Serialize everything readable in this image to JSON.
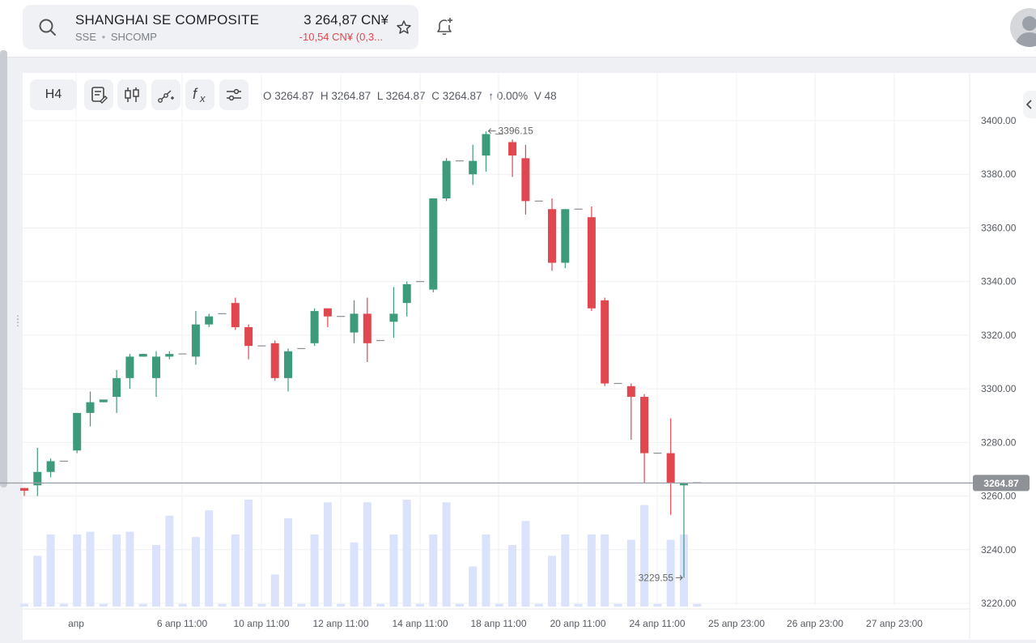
{
  "header": {
    "symbol_name": "SHANGHAI SE COMPOSITE",
    "exchange": "SSE",
    "ticker": "SHCOMP",
    "price": "3 264,87 CN¥",
    "change": "-10,54 CN¥ (0,3..."
  },
  "toolbar": {
    "timeframe": "H4",
    "ohlc": {
      "open": "O 3264.87",
      "high": "H 3264.87",
      "low": "L 3264.87",
      "close": "C 3264.87",
      "change": "↑ 0.00%",
      "volume": "V 48"
    }
  },
  "icons": [
    "search-icon",
    "star-icon",
    "alert-plus-icon",
    "user-avatar-icon",
    "notes-icon",
    "candles-icon",
    "draw-line-icon",
    "fx-icon",
    "settings-sliders-icon",
    "chevron-left-icon"
  ],
  "colors": {
    "up": "#3d9b7c",
    "down": "#e0474f",
    "volume": "#dbe2fb",
    "grid": "#eef0f3",
    "price_line": "#9ca0a6"
  },
  "chart_data": {
    "type": "candlestick",
    "timeframe": "H4",
    "y_axis": {
      "min": 3220,
      "max": 3400,
      "ticks": [
        3220.0,
        3240.0,
        3260.0,
        3280.0,
        3300.0,
        3320.0,
        3340.0,
        3360.0,
        3380.0,
        3400.0
      ]
    },
    "x_labels": [
      "апр",
      "6 апр 11:00",
      "10 апр 11:00",
      "12 апр 11:00",
      "14 апр 11:00",
      "18 апр 11:00",
      "20 апр 11:00",
      "24 апр 11:00",
      "25 апр 23:00",
      "26 апр 23:00",
      "27 апр 23:00"
    ],
    "last_price_label": "3264.87",
    "high_annotation": "3396.15",
    "low_annotation": "3229.55",
    "candles": [
      {
        "o": 3263,
        "h": 3263,
        "l": 3260,
        "c": 3262,
        "v": 1
      },
      {
        "o": 3264,
        "h": 3278,
        "l": 3260,
        "c": 3269,
        "v": 19
      },
      {
        "o": 3269,
        "h": 3274,
        "l": 3267,
        "c": 3273,
        "v": 27
      },
      {
        "o": 3273,
        "h": 3273,
        "l": 3272,
        "c": 3273,
        "v": 1
      },
      {
        "o": 3277,
        "h": 3291,
        "l": 3276,
        "c": 3291,
        "v": 27
      },
      {
        "o": 3291,
        "h": 3299,
        "l": 3286,
        "c": 3295,
        "v": 28
      },
      {
        "o": 3295,
        "h": 3296,
        "l": 3295,
        "c": 3296,
        "v": 1
      },
      {
        "o": 3297,
        "h": 3307,
        "l": 3291,
        "c": 3304,
        "v": 27
      },
      {
        "o": 3304,
        "h": 3313,
        "l": 3300,
        "c": 3312,
        "v": 28
      },
      {
        "o": 3312,
        "h": 3313,
        "l": 3312,
        "c": 3313,
        "v": 1
      },
      {
        "o": 3304,
        "h": 3314,
        "l": 3297,
        "c": 3312,
        "v": 23
      },
      {
        "o": 3312,
        "h": 3314,
        "l": 3311,
        "c": 3313,
        "v": 34
      },
      {
        "o": 3313,
        "h": 3313,
        "l": 3313,
        "c": 3313,
        "v": 1
      },
      {
        "o": 3312,
        "h": 3329,
        "l": 3309,
        "c": 3324,
        "v": 26
      },
      {
        "o": 3324,
        "h": 3328,
        "l": 3323,
        "c": 3327,
        "v": 36
      },
      {
        "o": 3328,
        "h": 3328,
        "l": 3328,
        "c": 3328,
        "v": 1
      },
      {
        "o": 3332,
        "h": 3334,
        "l": 3322,
        "c": 3323,
        "v": 27
      },
      {
        "o": 3323,
        "h": 3324,
        "l": 3311,
        "c": 3316,
        "v": 40
      },
      {
        "o": 3316,
        "h": 3316,
        "l": 3316,
        "c": 3316,
        "v": 1
      },
      {
        "o": 3317,
        "h": 3318,
        "l": 3303,
        "c": 3304,
        "v": 12
      },
      {
        "o": 3304,
        "h": 3315,
        "l": 3299,
        "c": 3314,
        "v": 33
      },
      {
        "o": 3315,
        "h": 3315,
        "l": 3315,
        "c": 3315,
        "v": 1
      },
      {
        "o": 3317,
        "h": 3330,
        "l": 3316,
        "c": 3329,
        "v": 27
      },
      {
        "o": 3330,
        "h": 3330,
        "l": 3323,
        "c": 3327,
        "v": 39
      },
      {
        "o": 3327,
        "h": 3327,
        "l": 3327,
        "c": 3327,
        "v": 1
      },
      {
        "o": 3321,
        "h": 3333,
        "l": 3317,
        "c": 3328,
        "v": 24
      },
      {
        "o": 3328,
        "h": 3334,
        "l": 3310,
        "c": 3317,
        "v": 39
      },
      {
        "o": 3318,
        "h": 3318,
        "l": 3318,
        "c": 3318,
        "v": 1
      },
      {
        "o": 3325,
        "h": 3338,
        "l": 3319,
        "c": 3328,
        "v": 27
      },
      {
        "o": 3332,
        "h": 3340,
        "l": 3327,
        "c": 3339,
        "v": 40
      },
      {
        "o": 3340,
        "h": 3340,
        "l": 3340,
        "c": 3340,
        "v": 1
      },
      {
        "o": 3337,
        "h": 3371,
        "l": 3336,
        "c": 3371,
        "v": 27
      },
      {
        "o": 3371,
        "h": 3386,
        "l": 3370,
        "c": 3385,
        "v": 39
      },
      {
        "o": 3385,
        "h": 3385,
        "l": 3385,
        "c": 3385,
        "v": 1
      },
      {
        "o": 3380,
        "h": 3391,
        "l": 3376,
        "c": 3385,
        "v": 15
      },
      {
        "o": 3387,
        "h": 3396,
        "l": 3381,
        "c": 3395,
        "v": 27
      },
      {
        "o": 3395,
        "h": 3395,
        "l": 3395,
        "c": 3395,
        "v": 1
      },
      {
        "o": 3392,
        "h": 3393,
        "l": 3379,
        "c": 3387,
        "v": 23
      },
      {
        "o": 3386,
        "h": 3391,
        "l": 3365,
        "c": 3370,
        "v": 32
      },
      {
        "o": 3370,
        "h": 3370,
        "l": 3370,
        "c": 3370,
        "v": 1
      },
      {
        "o": 3367,
        "h": 3371,
        "l": 3344,
        "c": 3347,
        "v": 19
      },
      {
        "o": 3347,
        "h": 3367,
        "l": 3345,
        "c": 3367,
        "v": 27
      },
      {
        "o": 3367,
        "h": 3367,
        "l": 3367,
        "c": 3367,
        "v": 1
      },
      {
        "o": 3364,
        "h": 3368,
        "l": 3329,
        "c": 3330,
        "v": 27
      },
      {
        "o": 3333,
        "h": 3334,
        "l": 3301,
        "c": 3302,
        "v": 27
      },
      {
        "o": 3302,
        "h": 3302,
        "l": 3302,
        "c": 3302,
        "v": 1
      },
      {
        "o": 3301,
        "h": 3302,
        "l": 3281,
        "c": 3297,
        "v": 25
      },
      {
        "o": 3297,
        "h": 3298,
        "l": 3265,
        "c": 3276,
        "v": 38
      },
      {
        "o": 3276,
        "h": 3276,
        "l": 3276,
        "c": 3276,
        "v": 1
      },
      {
        "o": 3276,
        "h": 3289,
        "l": 3253,
        "c": 3265,
        "v": 25
      },
      {
        "o": 3264,
        "h": 3265,
        "l": 3229.55,
        "c": 3265,
        "v": 27
      },
      {
        "o": 3265,
        "h": 3265,
        "l": 3265,
        "c": 3265,
        "v": 1
      }
    ]
  }
}
